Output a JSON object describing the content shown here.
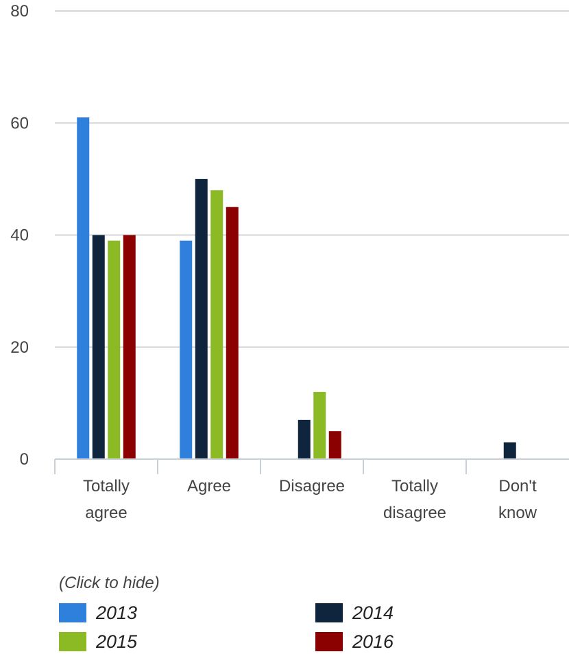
{
  "chart_data": {
    "type": "bar",
    "categories": [
      [
        "Totally",
        "agree"
      ],
      [
        "Agree"
      ],
      [
        "Disagree"
      ],
      [
        "Totally",
        "disagree"
      ],
      [
        "Don't",
        "know"
      ]
    ],
    "series": [
      {
        "name": "2013",
        "color": "#2f80dc",
        "values": [
          61,
          39,
          0,
          0,
          0
        ]
      },
      {
        "name": "2014",
        "color": "#0f243d",
        "values": [
          40,
          50,
          7,
          0,
          3
        ]
      },
      {
        "name": "2015",
        "color": "#8cba25",
        "values": [
          39,
          48,
          12,
          0,
          0
        ]
      },
      {
        "name": "2016",
        "color": "#8b0000",
        "values": [
          40,
          45,
          5,
          0,
          0
        ]
      }
    ],
    "y_ticks": [
      "0",
      "20",
      "40",
      "60",
      "80"
    ],
    "ylim": [
      0,
      80
    ],
    "grid": true,
    "legend_position": "bottom"
  },
  "legend": {
    "hint": "(Click to hide)"
  }
}
